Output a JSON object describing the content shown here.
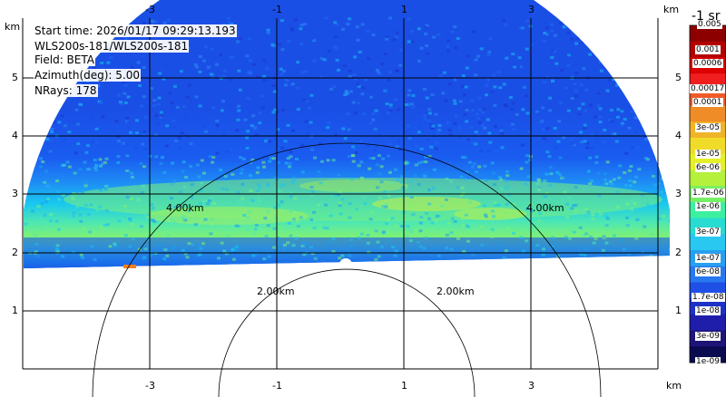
{
  "info": {
    "start_time": "Start time: 2026/01/17 09:29:13.193",
    "instrument": "WLS200s-181/WLS200s-181",
    "field": "Field: BETA",
    "azimuth": "Azimuth(deg): 5.00",
    "nrays": "NRays: 178"
  },
  "axes": {
    "x_ticks": [
      "-3",
      "-1",
      "1",
      "3"
    ],
    "x_unit": "km",
    "y_ticks": [
      "5",
      "4",
      "3",
      "2",
      "1"
    ],
    "y_unit": "km"
  },
  "range_rings": [
    "2.00km",
    "4.00km"
  ],
  "colorbar": {
    "title": "-1 sr",
    "labels": [
      "0.005",
      "0.001",
      "0.0006",
      "0.00017",
      "0.0001",
      "3e-05",
      "1e-05",
      "6e-06",
      "1.7e-06",
      "1e-06",
      "3e-07",
      "1e-07",
      "6e-08",
      "1.7e-08",
      "1e-08",
      "3e-09",
      "1e-09"
    ]
  },
  "colors": {
    "background_blue": "#1a4fe6",
    "band_cyan": "#18c8f0",
    "band_green": "#6ef088",
    "band_yellow": "#c8f040"
  }
}
